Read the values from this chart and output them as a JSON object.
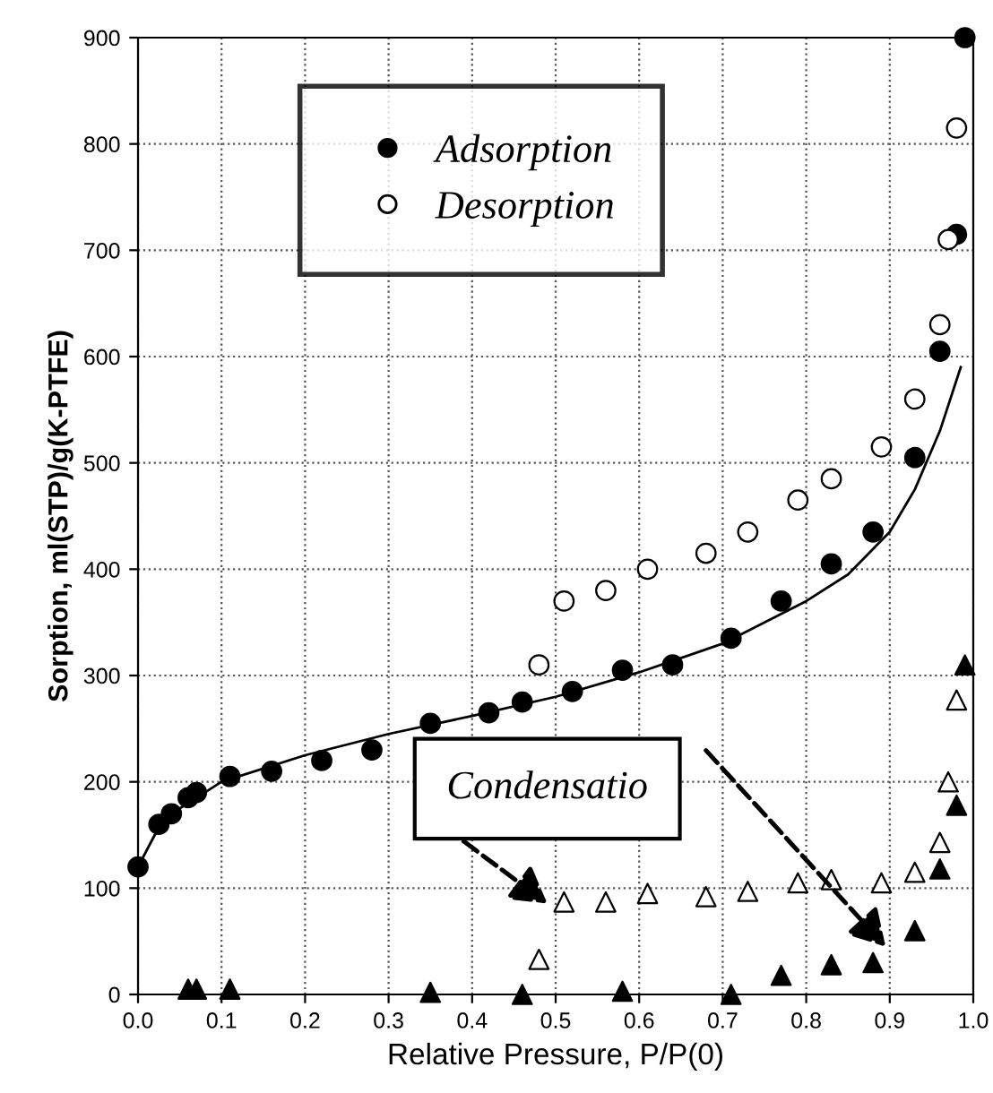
{
  "chart_data": {
    "type": "scatter",
    "xlabel": "Relative Pressure, P/P(0)",
    "ylabel": "Sorption, ml(STP)/g(K-PTFE)",
    "xlim": [
      0,
      1
    ],
    "ylim": [
      0,
      900
    ],
    "xticks": [
      {
        "value": 0,
        "label": "0.0"
      },
      {
        "value": 0.1,
        "label": "0.1"
      },
      {
        "value": 0.2,
        "label": "0.2"
      },
      {
        "value": 0.3,
        "label": "0.3"
      },
      {
        "value": 0.4,
        "label": "0.4"
      },
      {
        "value": 0.5,
        "label": "0.5"
      },
      {
        "value": 0.6,
        "label": "0.6"
      },
      {
        "value": 0.7,
        "label": "0.7"
      },
      {
        "value": 0.8,
        "label": "0.8"
      },
      {
        "value": 0.9,
        "label": "0.9"
      },
      {
        "value": 1,
        "label": "1.0"
      }
    ],
    "yticks": [
      0,
      100,
      200,
      300,
      400,
      500,
      600,
      700,
      800,
      900
    ],
    "grid": true,
    "legend": "top left",
    "annotations": [
      "Condensatio"
    ],
    "series": [
      {
        "name": "Adsorption",
        "type": "scatter",
        "marker": "circle",
        "color": "#000000",
        "x": [
          0,
          0.025,
          0.04,
          0.06,
          0.07,
          0.11,
          0.16,
          0.22,
          0.28,
          0.35,
          0.42,
          0.46,
          0.52,
          0.58,
          0.64,
          0.71,
          0.77,
          0.83,
          0.88,
          0.93,
          0.96,
          0.98,
          0.99
        ],
        "values": [
          120,
          160,
          170,
          185,
          190,
          205,
          210,
          220,
          230,
          255,
          265,
          275,
          285,
          305,
          310,
          335,
          370,
          405,
          435,
          505,
          605,
          715,
          900
        ]
      },
      {
        "name": "Desorption",
        "type": "scatter",
        "marker": "circle",
        "color": "#ffffff",
        "x": [
          0.48,
          0.51,
          0.56,
          0.61,
          0.68,
          0.73,
          0.79,
          0.83,
          0.89,
          0.93,
          0.96,
          0.97,
          0.98
        ],
        "values": [
          310,
          370,
          380,
          400,
          415,
          435,
          465,
          485,
          515,
          560,
          630,
          710,
          815
        ]
      },
      {
        "type": "scatter",
        "marker": "triangle",
        "color": "#000000",
        "x": [
          0.06,
          0.07,
          0.11,
          0.35,
          0.46,
          0.58,
          0.71,
          0.77,
          0.83,
          0.88,
          0.93,
          0.96,
          0.98,
          0.99
        ],
        "values": [
          5,
          5,
          5,
          2,
          0,
          3,
          0,
          18,
          28,
          30,
          60,
          118,
          178,
          310
        ]
      },
      {
        "type": "scatter",
        "marker": "triangle",
        "color": "#ffffff",
        "x": [
          0.48,
          0.51,
          0.56,
          0.61,
          0.68,
          0.73,
          0.79,
          0.83,
          0.89,
          0.93,
          0.96,
          0.97,
          0.98
        ],
        "values": [
          33,
          87,
          87,
          95,
          92,
          97,
          105,
          108,
          105,
          115,
          143,
          200,
          277
        ]
      },
      {
        "type": "line",
        "color": "#000000",
        "line_style": "solid",
        "marker": "none",
        "x": [
          0,
          0.02,
          0.05,
          0.1,
          0.2,
          0.3,
          0.4,
          0.5,
          0.6,
          0.7,
          0.8,
          0.85,
          0.9,
          0.93,
          0.96,
          0.985
        ],
        "values": [
          120,
          150,
          175,
          200,
          225,
          245,
          262,
          280,
          303,
          330,
          370,
          395,
          435,
          475,
          530,
          590
        ]
      }
    ]
  }
}
